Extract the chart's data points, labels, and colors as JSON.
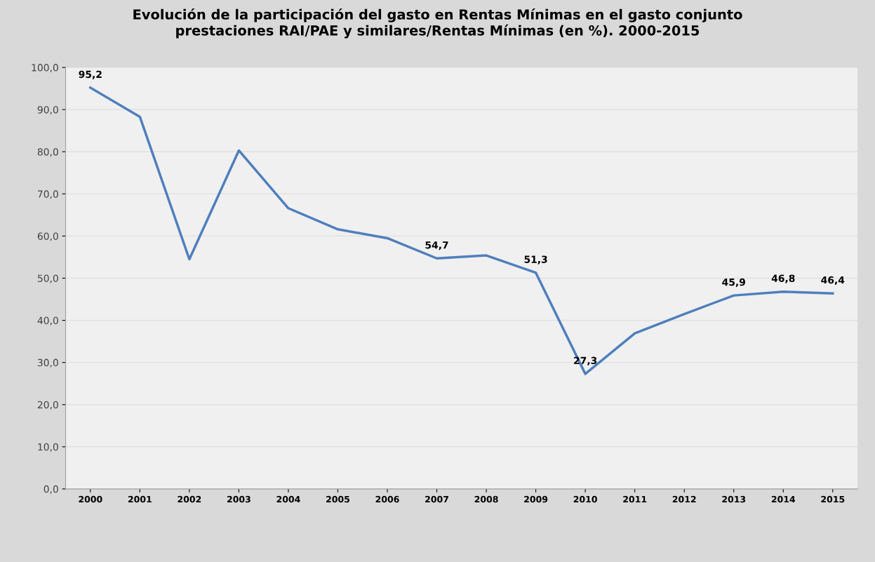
{
  "chart_data": {
    "type": "line",
    "title": "Evolución de la participación del gasto en Rentas Mínimas en el gasto conjunto\nprestaciones RAI/PAE y similares/Rentas Mínimas (en %). 2000-2015",
    "categories": [
      "2000",
      "2001",
      "2002",
      "2003",
      "2004",
      "2005",
      "2006",
      "2007",
      "2008",
      "2009",
      "2010",
      "2011",
      "2012",
      "2013",
      "2014",
      "2015"
    ],
    "series": [
      {
        "color": "#4f7fbd",
        "values": [
          95.2,
          88.3,
          54.5,
          80.3,
          66.6,
          61.6,
          59.5,
          54.7,
          55.4,
          51.3,
          27.3,
          36.9,
          41.5,
          45.9,
          46.8,
          46.4
        ],
        "value_labels": [
          "95,2",
          null,
          null,
          null,
          null,
          null,
          null,
          "54,7",
          null,
          "51,3",
          "27,3",
          null,
          null,
          "45,9",
          "46,8",
          "46,4"
        ]
      }
    ],
    "ylim": [
      0,
      100
    ],
    "yticks": [
      {
        "value": 0,
        "label": "0,0"
      },
      {
        "value": 10,
        "label": "10,0"
      },
      {
        "value": 20,
        "label": "20,0"
      },
      {
        "value": 30,
        "label": "30,0"
      },
      {
        "value": 40,
        "label": "40,0"
      },
      {
        "value": 50,
        "label": "50,0"
      },
      {
        "value": 60,
        "label": "60,0"
      },
      {
        "value": 70,
        "label": "70,0"
      },
      {
        "value": 80,
        "label": "80,0"
      },
      {
        "value": 90,
        "label": "90,0"
      },
      {
        "value": 100,
        "label": "100,0"
      }
    ],
    "grid": "y",
    "marker": "none",
    "line_style": "solid",
    "legend": false
  }
}
